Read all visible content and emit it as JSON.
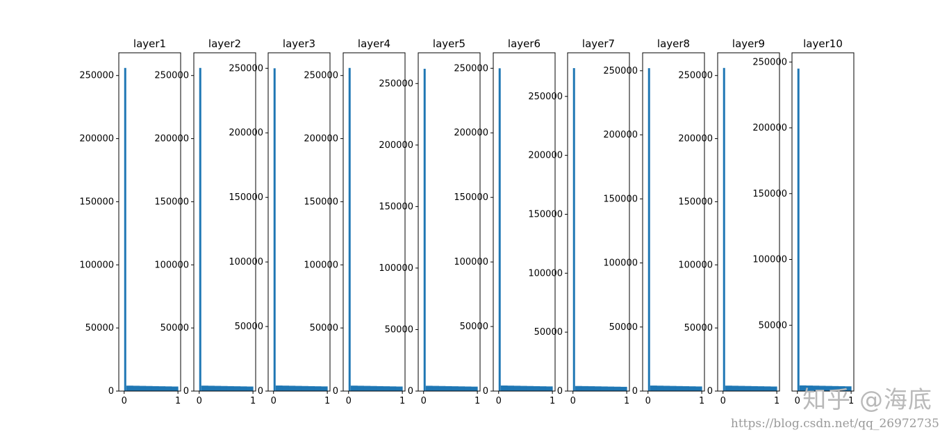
{
  "chart_data": [
    {
      "type": "bar",
      "title": "layer1",
      "ylim": [
        0,
        268000
      ],
      "xlim": [
        -0.1,
        1.05
      ],
      "xticks": [
        "0",
        "1"
      ],
      "yticks": [
        "0",
        "50000",
        "100000",
        "150000",
        "200000",
        "250000"
      ],
      "ytick_values": [
        0,
        50000,
        100000,
        150000,
        200000,
        250000
      ],
      "spike": {
        "x": 0.0,
        "value": 256000
      },
      "tail": [
        4300,
        4200,
        4100,
        4000,
        3900,
        3800,
        3700,
        3600
      ],
      "color": "#1f77b4"
    },
    {
      "type": "bar",
      "title": "layer2",
      "ylim": [
        0,
        268000
      ],
      "xlim": [
        -0.1,
        1.05
      ],
      "xticks": [
        "0",
        "1"
      ],
      "yticks": [
        "0",
        "50000",
        "100000",
        "150000",
        "200000",
        "250000"
      ],
      "ytick_values": [
        0,
        50000,
        100000,
        150000,
        200000,
        250000
      ],
      "spike": {
        "x": 0.0,
        "value": 256000
      },
      "tail": [
        4300,
        4200,
        4100,
        4000,
        3900,
        3800,
        3700,
        3600
      ],
      "color": "#1f77b4"
    },
    {
      "type": "bar",
      "title": "layer3",
      "ylim": [
        0,
        262000
      ],
      "xlim": [
        -0.1,
        1.05
      ],
      "xticks": [
        "0",
        "1"
      ],
      "yticks": [
        "0",
        "50000",
        "100000",
        "150000",
        "200000",
        "250000"
      ],
      "ytick_values": [
        0,
        50000,
        100000,
        150000,
        200000,
        250000
      ],
      "spike": {
        "x": 0.0,
        "value": 250000
      },
      "tail": [
        4300,
        4200,
        4100,
        4000,
        3900,
        3800,
        3700,
        3600
      ],
      "color": "#1f77b4"
    },
    {
      "type": "bar",
      "title": "layer4",
      "ylim": [
        0,
        268000
      ],
      "xlim": [
        -0.1,
        1.05
      ],
      "xticks": [
        "0",
        "1"
      ],
      "yticks": [
        "0",
        "50000",
        "100000",
        "150000",
        "200000",
        "250000"
      ],
      "ytick_values": [
        0,
        50000,
        100000,
        150000,
        200000,
        250000
      ],
      "spike": {
        "x": 0.0,
        "value": 256000
      },
      "tail": [
        4300,
        4200,
        4100,
        4000,
        3900,
        3800,
        3700,
        3600
      ],
      "color": "#1f77b4"
    },
    {
      "type": "bar",
      "title": "layer5",
      "ylim": [
        0,
        275000
      ],
      "xlim": [
        -0.1,
        1.05
      ],
      "xticks": [
        "0",
        "1"
      ],
      "yticks": [
        "0",
        "50000",
        "100000",
        "150000",
        "200000",
        "250000"
      ],
      "ytick_values": [
        0,
        50000,
        100000,
        150000,
        200000,
        250000
      ],
      "spike": {
        "x": 0.0,
        "value": 262000
      },
      "tail": [
        4300,
        4200,
        4100,
        4000,
        3900,
        3800,
        3700,
        3600
      ],
      "color": "#1f77b4"
    },
    {
      "type": "bar",
      "title": "layer6",
      "ylim": [
        0,
        262000
      ],
      "xlim": [
        -0.1,
        1.05
      ],
      "xticks": [
        "0",
        "1"
      ],
      "yticks": [
        "0",
        "50000",
        "100000",
        "150000",
        "200000",
        "250000"
      ],
      "ytick_values": [
        0,
        50000,
        100000,
        150000,
        200000,
        250000
      ],
      "spike": {
        "x": 0.0,
        "value": 250000
      },
      "tail": [
        4300,
        4200,
        4100,
        4000,
        3900,
        3800,
        3700,
        3600
      ],
      "color": "#1f77b4"
    },
    {
      "type": "bar",
      "title": "layer7",
      "ylim": [
        0,
        287000
      ],
      "xlim": [
        -0.1,
        1.05
      ],
      "xticks": [
        "0",
        "1"
      ],
      "yticks": [
        "0",
        "50000",
        "100000",
        "150000",
        "200000",
        "250000"
      ],
      "ytick_values": [
        0,
        50000,
        100000,
        150000,
        200000,
        250000
      ],
      "spike": {
        "x": 0.0,
        "value": 274000
      },
      "tail": [
        4300,
        4200,
        4100,
        4000,
        3900,
        3800,
        3700,
        3600
      ],
      "color": "#1f77b4"
    },
    {
      "type": "bar",
      "title": "layer8",
      "ylim": [
        0,
        264000
      ],
      "xlim": [
        -0.1,
        1.05
      ],
      "xticks": [
        "0",
        "1"
      ],
      "yticks": [
        "0",
        "50000",
        "100000",
        "150000",
        "200000",
        "250000"
      ],
      "ytick_values": [
        0,
        50000,
        100000,
        150000,
        200000,
        250000
      ],
      "spike": {
        "x": 0.0,
        "value": 252000
      },
      "tail": [
        4300,
        4200,
        4100,
        4000,
        3900,
        3800,
        3700,
        3600
      ],
      "color": "#1f77b4"
    },
    {
      "type": "bar",
      "title": "layer9",
      "ylim": [
        0,
        268000
      ],
      "xlim": [
        -0.1,
        1.05
      ],
      "xticks": [
        "0",
        "1"
      ],
      "yticks": [
        "0",
        "50000",
        "100000",
        "150000",
        "200000",
        "250000"
      ],
      "ytick_values": [
        0,
        50000,
        100000,
        150000,
        200000,
        250000
      ],
      "spike": {
        "x": 0.0,
        "value": 256000
      },
      "tail": [
        4300,
        4200,
        4100,
        4000,
        3900,
        3800,
        3700,
        3600
      ],
      "color": "#1f77b4"
    },
    {
      "type": "bar",
      "title": "layer10",
      "ylim": [
        0,
        257000
      ],
      "xlim": [
        -0.1,
        1.05
      ],
      "xticks": [
        "0",
        "1"
      ],
      "yticks": [
        "50000",
        "100000",
        "150000",
        "200000",
        "250000"
      ],
      "ytick_values": [
        50000,
        100000,
        150000,
        200000,
        250000
      ],
      "spike": {
        "x": 0.0,
        "value": 245000
      },
      "tail": [
        4300,
        4200,
        4100,
        4000,
        3900,
        3800,
        3700,
        3600
      ],
      "color": "#1f77b4"
    }
  ],
  "watermark": {
    "brand": "知乎 @海底",
    "url": "https://blog.csdn.net/qq_26972735"
  }
}
